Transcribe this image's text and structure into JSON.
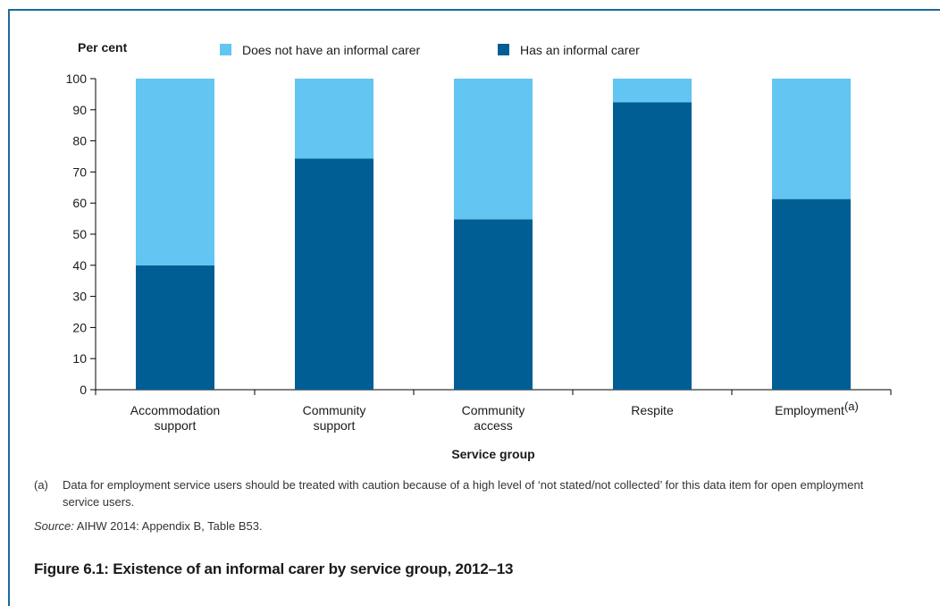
{
  "chart_data": {
    "type": "bar",
    "stacked": true,
    "categories": [
      "Accommodation\nsupport",
      "Community\nsupport",
      "Community\naccess",
      "Respite",
      "Employment"
    ],
    "category_superscripts": [
      "",
      "",
      "",
      "",
      "(a)"
    ],
    "series": [
      {
        "name": "Has an informal carer",
        "color": "#005e95",
        "values": [
          40,
          74.3,
          54.8,
          92.4,
          61.3
        ]
      },
      {
        "name": "Does not have an informal carer",
        "color": "#63c5f1",
        "values": [
          60,
          25.7,
          45.2,
          7.6,
          38.7
        ]
      }
    ],
    "legend_order": [
      1,
      0
    ],
    "legend_position": "top",
    "ylabel": "Per cent",
    "xlabel": "Service group",
    "ylim": [
      0,
      100
    ],
    "yticks": [
      0,
      10,
      20,
      30,
      40,
      50,
      60,
      70,
      80,
      90,
      100
    ],
    "grid": false
  },
  "footnote": {
    "marker": "(a)",
    "text": "Data for employment service users should be treated with caution because of a high level of ‘not stated/not collected’ for this data item for open employment service users."
  },
  "source": {
    "label": "Source:",
    "text": " AIHW 2014: Appendix B, Table B53."
  },
  "caption": "Figure 6.1: Existence of an informal carer by service group, 2012–13"
}
